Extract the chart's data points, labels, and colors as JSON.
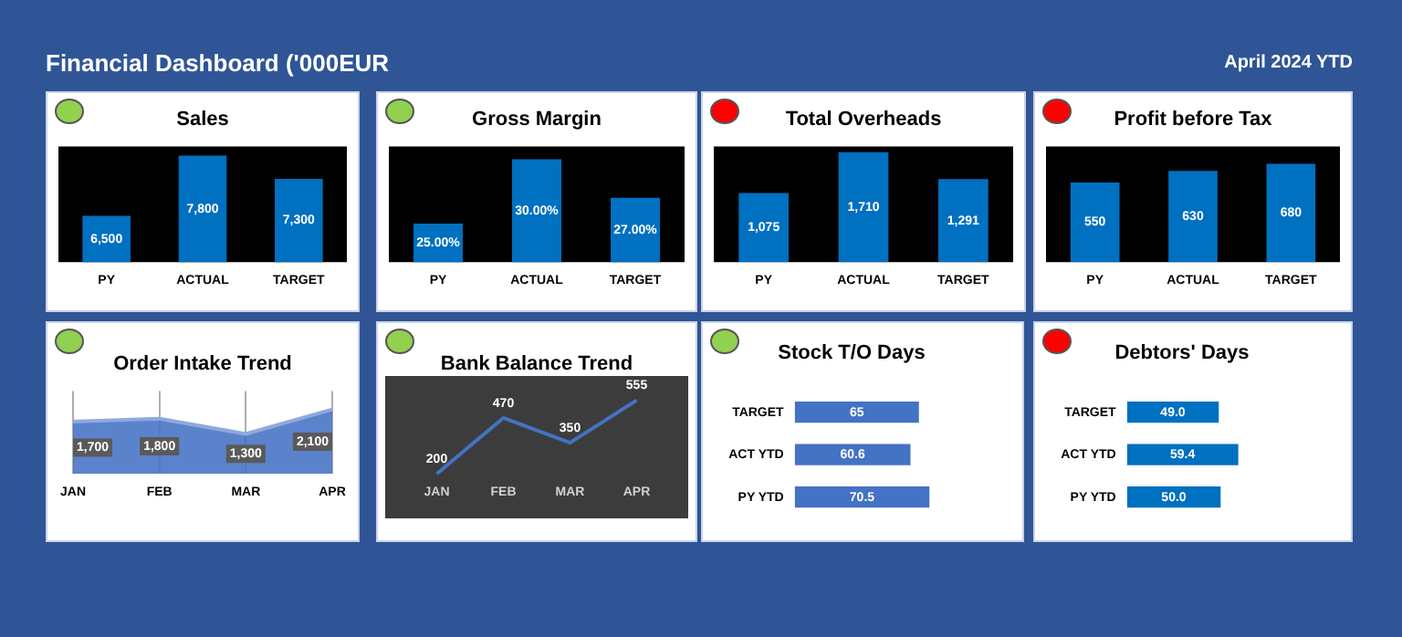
{
  "chart_data": [
    {
      "type": "other",
      "title": "Financial Dashboard ('000EUR",
      "annotations": [
        "April 2024 YTD"
      ]
    },
    {
      "type": "bar",
      "title": "Sales",
      "categories": [
        "PY",
        "ACTUAL",
        "TARGET"
      ],
      "values": [
        6500,
        7800,
        7300
      ],
      "value_labels": [
        "6,500",
        "7,800",
        "7,300"
      ],
      "color": "#0070c0",
      "ylim": [
        5500,
        8000
      ],
      "tick_labels": "x"
    },
    {
      "type": "bar",
      "title": "Gross Margin",
      "categories": [
        "PY",
        "ACTUAL",
        "TARGET"
      ],
      "values": [
        25,
        30,
        27
      ],
      "value_labels": [
        "25.00%",
        "30.00%",
        "27.00%"
      ],
      "color": "#0070c0",
      "ylim": [
        22,
        31
      ],
      "tick_labels": "x"
    },
    {
      "type": "bar",
      "title": "Total Overheads",
      "categories": [
        "PY",
        "ACTUAL",
        "TARGET"
      ],
      "values": [
        1075,
        1710,
        1291
      ],
      "value_labels": [
        "1,075",
        "1,710",
        "1,291"
      ],
      "color": "#0070c0",
      "ylim": [
        0,
        1800
      ],
      "tick_labels": "x"
    },
    {
      "type": "bar",
      "title": "Profit before Tax",
      "categories": [
        "PY",
        "ACTUAL",
        "TARGET"
      ],
      "values": [
        550,
        630,
        680
      ],
      "data_labels": true,
      "color": "#0070c0",
      "ylim": [
        0,
        800
      ],
      "tick_labels": "x"
    },
    {
      "type": "area",
      "title": "Order Intake Trend",
      "categories": [
        "JAN",
        "FEB",
        "MAR",
        "APR"
      ],
      "values": [
        1700,
        1800,
        1300,
        2100
      ],
      "value_labels": [
        "1,700",
        "1,800",
        "1,300",
        "2,100"
      ],
      "color": "#4472c4",
      "ylim": [
        0,
        2700
      ],
      "tick_labels": "x",
      "grid": "x"
    },
    {
      "type": "line",
      "title": "Bank Balance Trend",
      "categories": [
        "JAN",
        "FEB",
        "MAR",
        "APR"
      ],
      "values": [
        200,
        470,
        350,
        555
      ],
      "data_labels": true,
      "color": "#4472c4",
      "tick_labels": "x"
    },
    {
      "type": "bar",
      "orientation": "horizontal",
      "title": "Stock T/O Days",
      "categories": [
        "TARGET",
        "ACT YTD",
        "PY YTD"
      ],
      "values": [
        65,
        60.6,
        70.5
      ],
      "data_labels": true,
      "color": "#4472c4",
      "tick_labels": "y"
    },
    {
      "type": "bar",
      "orientation": "horizontal",
      "title": "Debtors' Days",
      "categories": [
        "TARGET",
        "ACT YTD",
        "PY YTD"
      ],
      "values": [
        49.0,
        59.4,
        50.0
      ],
      "value_labels": [
        "49.0",
        "59.4",
        "50.0"
      ],
      "color": "#0070c0",
      "tick_labels": "y"
    }
  ]
}
